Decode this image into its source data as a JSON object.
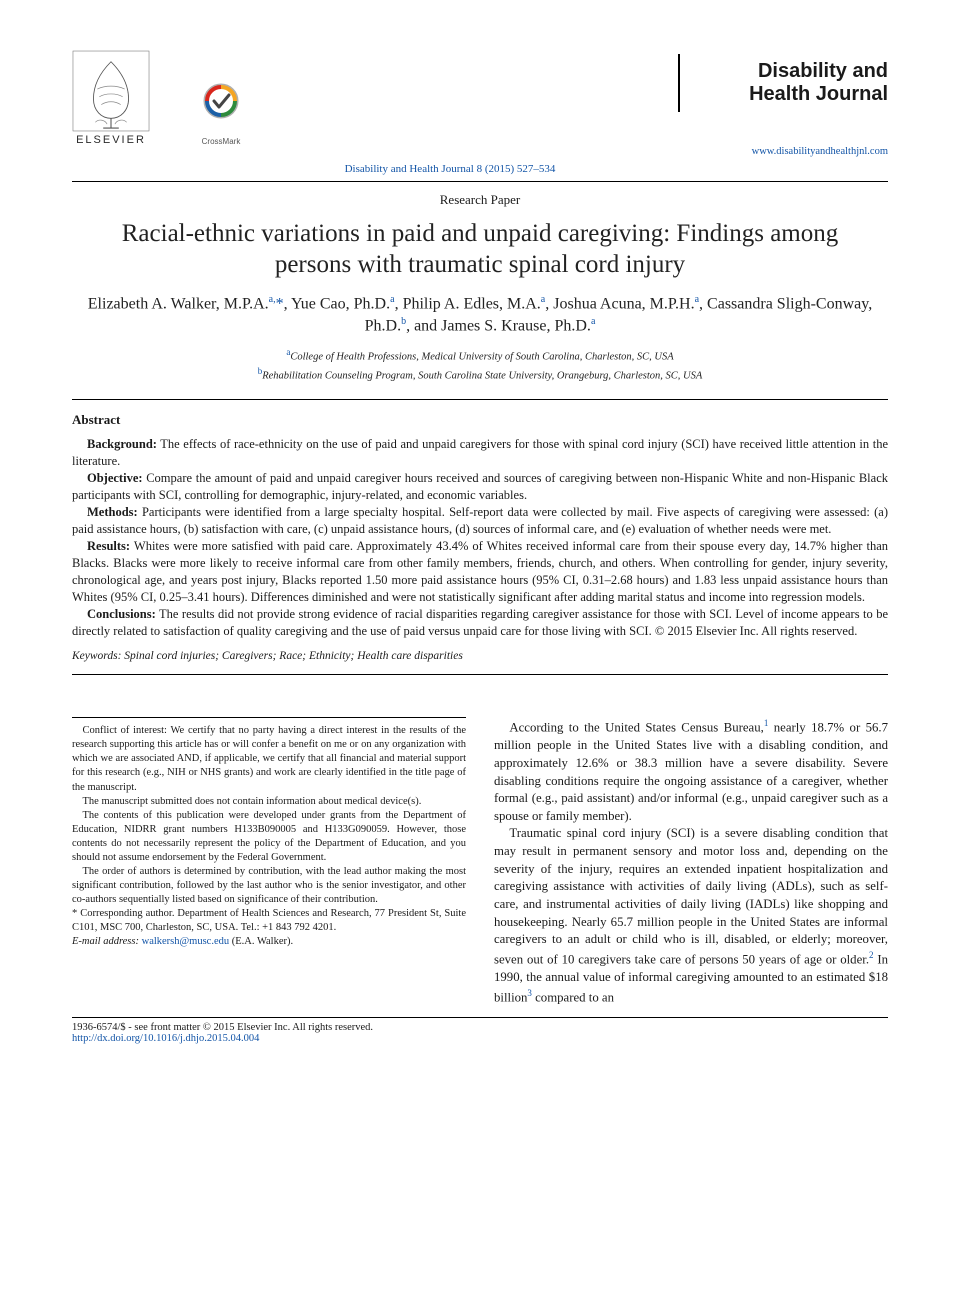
{
  "publisher": {
    "name": "ELSEVIER",
    "crossmark_label": "CrossMark"
  },
  "journal": {
    "title_line1": "Disability and",
    "title_line2": "Health Journal",
    "url": "www.disabilityandhealthjnl.com",
    "citation": "Disability and Health Journal 8 (2015) 527–534"
  },
  "article": {
    "category": "Research Paper",
    "title": "Racial-ethnic variations in paid and unpaid caregiving: Findings among persons with traumatic spinal cord injury",
    "authors_html": "Elizabeth A. Walker, M.P.A.<sup>a,</sup><span class='star'>*</span>, Yue Cao, Ph.D.<sup>a</sup>, Philip A. Edles, M.A.<sup>a</sup>, Joshua Acuna, M.P.H.<sup>a</sup>, Cassandra Sligh-Conway, Ph.D.<sup>b</sup>, and James S. Krause, Ph.D.<sup>a</sup>",
    "affiliations": [
      {
        "sup": "a",
        "text": "College of Health Professions, Medical University of South Carolina, Charleston, SC, USA"
      },
      {
        "sup": "b",
        "text": "Rehabilitation Counseling Program, South Carolina State University, Orangeburg, Charleston, SC, USA"
      }
    ]
  },
  "abstract": {
    "heading": "Abstract",
    "sections": {
      "background": {
        "label": "Background:",
        "text": "The effects of race-ethnicity on the use of paid and unpaid caregivers for those with spinal cord injury (SCI) have received little attention in the literature."
      },
      "objective": {
        "label": "Objective:",
        "text": "Compare the amount of paid and unpaid caregiver hours received and sources of caregiving between non-Hispanic White and non-Hispanic Black participants with SCI, controlling for demographic, injury-related, and economic variables."
      },
      "methods": {
        "label": "Methods:",
        "text": "Participants were identified from a large specialty hospital. Self-report data were collected by mail. Five aspects of caregiving were assessed: (a) paid assistance hours, (b) satisfaction with care, (c) unpaid assistance hours, (d) sources of informal care, and (e) evaluation of whether needs were met."
      },
      "results": {
        "label": "Results:",
        "text": "Whites were more satisfied with paid care. Approximately 43.4% of Whites received informal care from their spouse every day, 14.7% higher than Blacks. Blacks were more likely to receive informal care from other family members, friends, church, and others. When controlling for gender, injury severity, chronological age, and years post injury, Blacks reported 1.50 more paid assistance hours (95% CI, 0.31–2.68 hours) and 1.83 less unpaid assistance hours than Whites (95% CI, 0.25–3.41 hours). Differences diminished and were not statistically significant after adding marital status and income into regression models."
      },
      "conclusions": {
        "label": "Conclusions:",
        "text": "The results did not provide strong evidence of racial disparities regarding caregiver assistance for those with SCI. Level of income appears to be directly related to satisfaction of quality caregiving and the use of paid versus unpaid care for those living with SCI.  © 2015 Elsevier Inc. All rights reserved."
      }
    },
    "keywords_label": "Keywords:",
    "keywords": "Spinal cord injuries; Caregivers; Race; Ethnicity; Health care disparities"
  },
  "footnotes": {
    "conflict": "Conflict of interest: We certify that no party having a direct interest in the results of the research supporting this article has or will confer a benefit on me or on any organization with which we are associated AND, if applicable, we certify that all financial and material support for this research (e.g., NIH or NHS grants) and work are clearly identified in the title page of the manuscript.",
    "devices": "The manuscript submitted does not contain information about medical device(s).",
    "grants": "The contents of this publication were developed under grants from the Department of Education, NIDRR grant numbers H133B090005 and H133G090059. However, those contents do not necessarily represent the policy of the Department of Education, and you should not assume endorsement by the Federal Government.",
    "order": "The order of authors is determined by contribution, with the lead author making the most significant contribution, followed by the last author who is the senior investigator, and other co-authors sequentially listed based on significance of their contribution.",
    "corresponding": "* Corresponding author. Department of Health Sciences and Research, 77 President St, Suite C101, MSC 700, Charleston, SC, USA. Tel.: +1 843 792 4201.",
    "email_label": "E-mail address:",
    "email": "walkersh@musc.edu",
    "email_paren": "(E.A. Walker)."
  },
  "body": {
    "p1_pre": "According to the United States Census Bureau,",
    "p1_post": " nearly 18.7% or 56.7 million people in the United States live with a disabling condition, and approximately 12.6% or 38.3 million have a severe disability. Severe disabling conditions require the ongoing assistance of a caregiver, whether formal (e.g., paid assistant) and/or informal (e.g., unpaid caregiver such as a spouse or family member).",
    "p2_pre": "Traumatic spinal cord injury (SCI) is a severe disabling condition that may result in permanent sensory and motor loss and, depending on the severity of the injury, requires an extended inpatient hospitalization and caregiving assistance with activities of daily living (ADLs), such as self-care, and instrumental activities of daily living (IADLs) like shopping and housekeeping. Nearly 65.7 million people in the United States are informal caregivers to an adult or child who is ill, disabled, or elderly; moreover, seven out of 10 caregivers take care of persons 50 years of age or older.",
    "p2_mid": " In 1990, the annual value of informal caregiving amounted to an estimated $18 billion",
    "p2_post": " compared to an",
    "ref1": "1",
    "ref2": "2",
    "ref3": "3"
  },
  "footer": {
    "issn": "1936-6574/$ - see front matter © 2015 Elsevier Inc. All rights reserved.",
    "doi": "http://dx.doi.org/10.1016/j.dhjo.2015.04.004"
  }
}
